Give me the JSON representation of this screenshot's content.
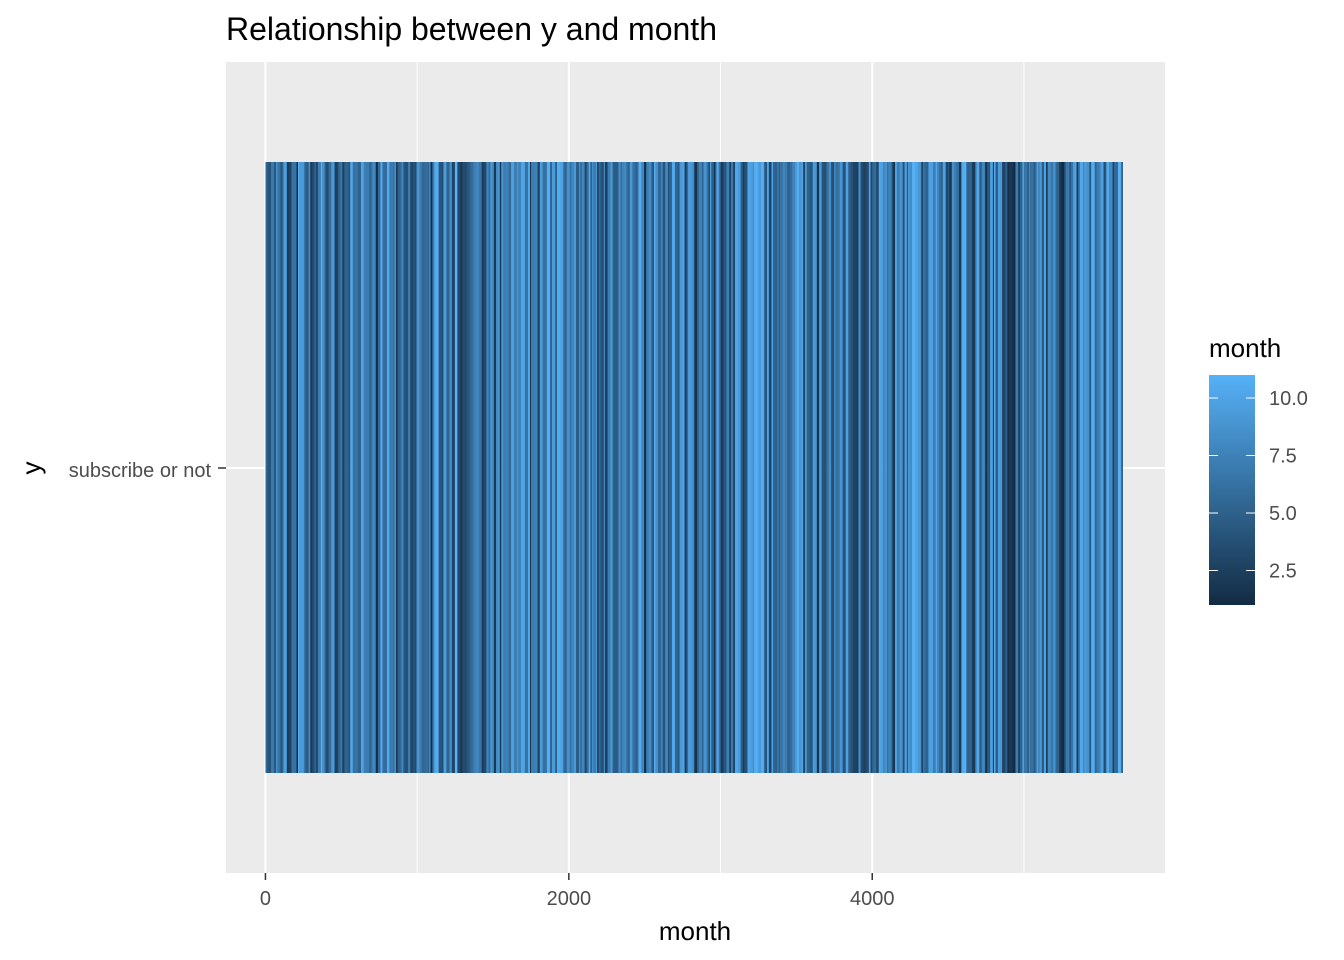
{
  "chart_data": {
    "type": "bar",
    "orientation": "horizontal",
    "title": "Relationship between y and month",
    "xlabel": "month",
    "ylabel": "y",
    "category": "subscribe or not",
    "x_ticks": [
      0,
      2000,
      4000
    ],
    "x_ticks_minor": [
      1000,
      3000,
      5000
    ],
    "xlim": [
      -260,
      5930
    ],
    "x_range": [
      0,
      5650
    ],
    "grid": true,
    "legend": {
      "title": "month",
      "position": "right",
      "type": "colorbar",
      "ticks": [
        2.5,
        5.0,
        7.5,
        10.0
      ],
      "tick_labels": [
        "2.5",
        "5.0",
        "7.5",
        "10.0"
      ],
      "range": [
        1,
        11
      ],
      "low_color": "#132B43",
      "high_color": "#56B1F7"
    },
    "colors": {
      "panel_background": "#EBEBEB",
      "grid": "#FFFFFF"
    }
  }
}
